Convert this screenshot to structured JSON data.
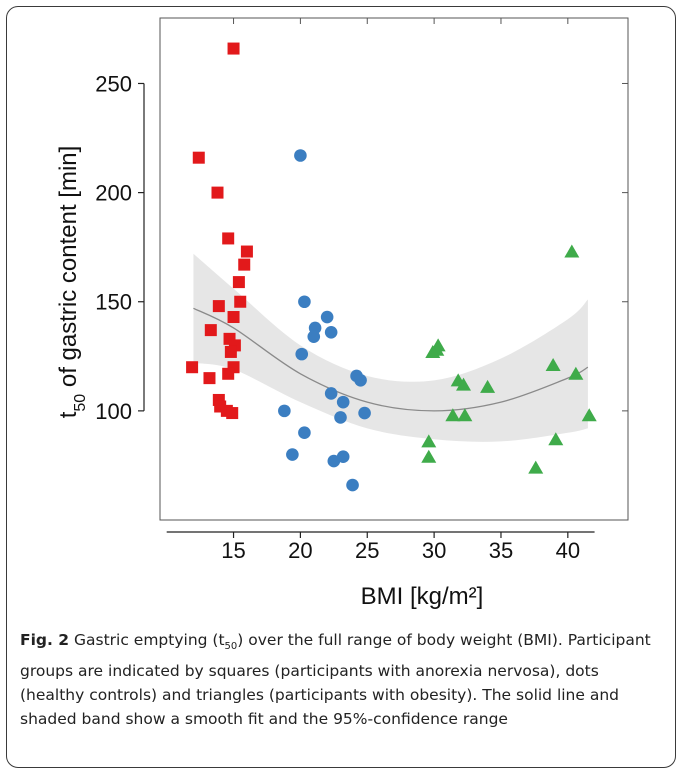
{
  "chart_data": {
    "type": "scatter",
    "xlabel": "BMI [kg/m²]",
    "ylabel_main": "t",
    "ylabel_sub": "50",
    "ylabel_rest": " of gastric content [min]",
    "xlim": [
      9.5,
      44.5
    ],
    "ylim": [
      50,
      280
    ],
    "xticks": [
      15,
      20,
      25,
      30,
      35,
      40
    ],
    "yticks": [
      100,
      150,
      200,
      250
    ],
    "grid": false,
    "colors": {
      "red": "#e2191b",
      "blue": "#3b7ec1",
      "green": "#3fab4a",
      "band": "#e6e6e6",
      "line": "#8a8a8a"
    },
    "series": [
      {
        "marker": "square",
        "points": [
          [
            15.0,
            266
          ],
          [
            12.4,
            216
          ],
          [
            13.8,
            200
          ],
          [
            14.6,
            179
          ],
          [
            16.0,
            173
          ],
          [
            15.8,
            167
          ],
          [
            15.4,
            159
          ],
          [
            15.5,
            150
          ],
          [
            13.9,
            148
          ],
          [
            15.0,
            143
          ],
          [
            13.3,
            137
          ],
          [
            14.7,
            133
          ],
          [
            15.1,
            130
          ],
          [
            14.8,
            127
          ],
          [
            11.9,
            120
          ],
          [
            15.0,
            120
          ],
          [
            14.6,
            117
          ],
          [
            13.2,
            115
          ],
          [
            13.9,
            105
          ],
          [
            14.0,
            102
          ],
          [
            14.5,
            100
          ],
          [
            14.9,
            99
          ]
        ]
      },
      {
        "marker": "circle",
        "points": [
          [
            20.0,
            217
          ],
          [
            20.3,
            150
          ],
          [
            22.0,
            143
          ],
          [
            21.1,
            138
          ],
          [
            21.0,
            134
          ],
          [
            22.3,
            136
          ],
          [
            20.1,
            126
          ],
          [
            24.2,
            116
          ],
          [
            24.5,
            114
          ],
          [
            22.3,
            108
          ],
          [
            23.2,
            104
          ],
          [
            18.8,
            100
          ],
          [
            24.8,
            99
          ],
          [
            23.0,
            97
          ],
          [
            20.3,
            90
          ],
          [
            19.4,
            80
          ],
          [
            23.2,
            79
          ],
          [
            22.5,
            77
          ],
          [
            23.9,
            66
          ]
        ]
      },
      {
        "marker": "triangle",
        "points": [
          [
            40.3,
            173
          ],
          [
            30.3,
            130
          ],
          [
            30.2,
            128
          ],
          [
            29.9,
            127
          ],
          [
            38.9,
            121
          ],
          [
            40.6,
            117
          ],
          [
            31.8,
            114
          ],
          [
            32.2,
            112
          ],
          [
            34.0,
            111
          ],
          [
            31.4,
            98
          ],
          [
            32.3,
            98
          ],
          [
            41.6,
            98
          ],
          [
            29.6,
            86
          ],
          [
            39.1,
            87
          ],
          [
            29.6,
            79
          ],
          [
            37.6,
            74
          ]
        ]
      }
    ],
    "fit": {
      "x": [
        12,
        15,
        20,
        25,
        30,
        35,
        40,
        41.5
      ],
      "y": [
        147,
        138,
        117,
        104,
        100,
        104,
        115,
        120
      ],
      "ci_low": [
        122,
        119,
        104,
        92,
        87,
        86,
        90,
        92
      ],
      "ci_high": [
        172,
        156,
        130,
        116,
        114,
        124,
        142,
        151
      ]
    }
  },
  "caption": {
    "fig_label": "Fig. 2",
    "text_a": " Gastric emptying (t",
    "text_sub": "50",
    "text_b": ") over the full range of body weight (BMI). Participant groups are indicated by squares (participants with anorexia nervosa), dots (healthy controls) and triangles (participants with obesity). The solid line and shaded band show a smooth fit and the 95%-confidence range"
  }
}
